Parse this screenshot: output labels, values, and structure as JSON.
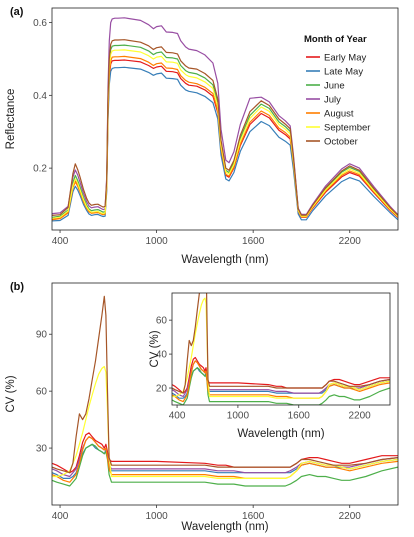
{
  "chart_data": [
    {
      "type": "line",
      "panel_label": "(a)",
      "xlabel": "Wavelength (nm)",
      "ylabel": "Reflectance",
      "xlim": [
        350,
        2500
      ],
      "ylim": [
        0.03,
        0.64
      ],
      "xticks": [
        400,
        1000,
        1600,
        2200
      ],
      "yticks": [
        0.2,
        0.4,
        0.6
      ],
      "ytick_labels": [
        "0.2",
        "0.4",
        "0.6"
      ],
      "grid": false,
      "legend": {
        "title": "Month of Year",
        "position": "top-right"
      },
      "x": [
        350,
        400,
        450,
        480,
        495,
        510,
        525,
        545,
        565,
        580,
        595,
        615,
        635,
        655,
        668,
        680,
        690,
        698,
        706,
        715,
        724,
        740,
        760,
        800,
        900,
        950,
        980,
        1000,
        1030,
        1060,
        1100,
        1130,
        1150,
        1180,
        1200,
        1250,
        1300,
        1350,
        1380,
        1400,
        1430,
        1450,
        1480,
        1520,
        1580,
        1650,
        1700,
        1760,
        1800,
        1830,
        1850,
        1880,
        1900,
        1930,
        1970,
        2050,
        2150,
        2200,
        2260,
        2350,
        2450,
        2500
      ],
      "series": [
        {
          "name": "Early May",
          "color": "#e41a1c",
          "values": [
            0.06,
            0.064,
            0.08,
            0.15,
            0.167,
            0.155,
            0.137,
            0.112,
            0.093,
            0.082,
            0.078,
            0.079,
            0.08,
            0.076,
            0.074,
            0.076,
            0.15,
            0.35,
            0.45,
            0.486,
            0.495,
            0.496,
            0.496,
            0.497,
            0.492,
            0.482,
            0.474,
            0.478,
            0.48,
            0.466,
            0.465,
            0.462,
            0.446,
            0.433,
            0.428,
            0.425,
            0.415,
            0.398,
            0.352,
            0.25,
            0.18,
            0.175,
            0.2,
            0.262,
            0.32,
            0.35,
            0.338,
            0.304,
            0.292,
            0.28,
            0.21,
            0.08,
            0.065,
            0.065,
            0.09,
            0.134,
            0.176,
            0.188,
            0.178,
            0.132,
            0.084,
            0.064
          ]
        },
        {
          "name": "Late May",
          "color": "#377eb8",
          "values": [
            0.055,
            0.056,
            0.07,
            0.135,
            0.15,
            0.14,
            0.124,
            0.101,
            0.084,
            0.074,
            0.07,
            0.072,
            0.073,
            0.069,
            0.067,
            0.068,
            0.135,
            0.33,
            0.43,
            0.466,
            0.474,
            0.476,
            0.476,
            0.477,
            0.472,
            0.463,
            0.455,
            0.459,
            0.461,
            0.447,
            0.446,
            0.444,
            0.428,
            0.415,
            0.411,
            0.407,
            0.397,
            0.38,
            0.335,
            0.236,
            0.17,
            0.165,
            0.188,
            0.246,
            0.3,
            0.328,
            0.317,
            0.285,
            0.274,
            0.263,
            0.197,
            0.074,
            0.058,
            0.058,
            0.083,
            0.124,
            0.163,
            0.174,
            0.165,
            0.122,
            0.078,
            0.058
          ]
        },
        {
          "name": "June",
          "color": "#4daf4a",
          "values": [
            0.065,
            0.068,
            0.085,
            0.16,
            0.18,
            0.166,
            0.147,
            0.12,
            0.099,
            0.088,
            0.083,
            0.085,
            0.086,
            0.082,
            0.079,
            0.081,
            0.158,
            0.375,
            0.487,
            0.526,
            0.535,
            0.537,
            0.537,
            0.538,
            0.532,
            0.522,
            0.512,
            0.517,
            0.519,
            0.504,
            0.503,
            0.5,
            0.482,
            0.468,
            0.463,
            0.459,
            0.448,
            0.429,
            0.38,
            0.27,
            0.194,
            0.188,
            0.215,
            0.282,
            0.345,
            0.376,
            0.364,
            0.327,
            0.314,
            0.301,
            0.226,
            0.086,
            0.069,
            0.069,
            0.096,
            0.144,
            0.189,
            0.202,
            0.191,
            0.142,
            0.09,
            0.068
          ]
        },
        {
          "name": "July",
          "color": "#984ea3",
          "values": [
            0.075,
            0.077,
            0.095,
            0.175,
            0.195,
            0.181,
            0.16,
            0.131,
            0.108,
            0.096,
            0.091,
            0.093,
            0.094,
            0.089,
            0.086,
            0.088,
            0.175,
            0.42,
            0.55,
            0.6,
            0.61,
            0.612,
            0.612,
            0.613,
            0.606,
            0.594,
            0.583,
            0.589,
            0.591,
            0.574,
            0.573,
            0.57,
            0.55,
            0.533,
            0.527,
            0.523,
            0.511,
            0.489,
            0.433,
            0.307,
            0.222,
            0.215,
            0.245,
            0.32,
            0.392,
            0.395,
            0.382,
            0.344,
            0.33,
            0.316,
            0.237,
            0.09,
            0.073,
            0.073,
            0.101,
            0.151,
            0.198,
            0.212,
            0.2,
            0.149,
            0.095,
            0.072
          ]
        },
        {
          "name": "August",
          "color": "#ff7f00",
          "values": [
            0.058,
            0.061,
            0.077,
            0.146,
            0.162,
            0.15,
            0.133,
            0.108,
            0.09,
            0.08,
            0.076,
            0.077,
            0.078,
            0.074,
            0.072,
            0.074,
            0.146,
            0.35,
            0.458,
            0.495,
            0.505,
            0.506,
            0.506,
            0.507,
            0.501,
            0.491,
            0.482,
            0.487,
            0.489,
            0.475,
            0.474,
            0.471,
            0.454,
            0.441,
            0.436,
            0.432,
            0.422,
            0.405,
            0.358,
            0.254,
            0.183,
            0.178,
            0.203,
            0.266,
            0.326,
            0.357,
            0.345,
            0.31,
            0.298,
            0.285,
            0.214,
            0.082,
            0.066,
            0.066,
            0.092,
            0.137,
            0.18,
            0.192,
            0.182,
            0.135,
            0.086,
            0.066
          ]
        },
        {
          "name": "September",
          "color": "#ffff33",
          "values": [
            0.062,
            0.065,
            0.082,
            0.152,
            0.17,
            0.158,
            0.139,
            0.114,
            0.094,
            0.084,
            0.079,
            0.08,
            0.081,
            0.077,
            0.075,
            0.077,
            0.152,
            0.365,
            0.475,
            0.513,
            0.522,
            0.524,
            0.524,
            0.525,
            0.519,
            0.509,
            0.5,
            0.505,
            0.507,
            0.492,
            0.491,
            0.488,
            0.47,
            0.457,
            0.452,
            0.448,
            0.437,
            0.419,
            0.37,
            0.263,
            0.19,
            0.184,
            0.21,
            0.275,
            0.337,
            0.368,
            0.356,
            0.32,
            0.307,
            0.294,
            0.221,
            0.084,
            0.068,
            0.068,
            0.094,
            0.14,
            0.184,
            0.197,
            0.186,
            0.138,
            0.088,
            0.067
          ]
        },
        {
          "name": "October",
          "color": "#a65628",
          "values": [
            0.07,
            0.072,
            0.092,
            0.185,
            0.212,
            0.196,
            0.174,
            0.142,
            0.117,
            0.104,
            0.098,
            0.1,
            0.101,
            0.096,
            0.093,
            0.095,
            0.165,
            0.39,
            0.5,
            0.54,
            0.55,
            0.552,
            0.552,
            0.553,
            0.546,
            0.536,
            0.526,
            0.531,
            0.533,
            0.518,
            0.517,
            0.514,
            0.495,
            0.481,
            0.475,
            0.472,
            0.46,
            0.441,
            0.39,
            0.277,
            0.2,
            0.194,
            0.221,
            0.29,
            0.355,
            0.385,
            0.372,
            0.335,
            0.321,
            0.308,
            0.231,
            0.088,
            0.071,
            0.071,
            0.098,
            0.146,
            0.192,
            0.206,
            0.194,
            0.144,
            0.092,
            0.07
          ]
        }
      ]
    },
    {
      "type": "line",
      "panel_label": "(b)",
      "xlabel": "Wavelength (nm)",
      "ylabel": "CV (%)",
      "xlim": [
        350,
        2500
      ],
      "ylim": [
        0,
        117
      ],
      "xticks": [
        400,
        1000,
        1600,
        2200
      ],
      "yticks": [
        30,
        60,
        90
      ],
      "grid": false,
      "x": [
        350,
        380,
        420,
        460,
        480,
        500,
        520,
        540,
        560,
        580,
        600,
        620,
        640,
        660,
        675,
        685,
        695,
        705,
        720,
        750,
        800,
        1000,
        1300,
        1380,
        1430,
        1480,
        1550,
        1800,
        1830,
        1870,
        1900,
        1950,
        2000,
        2050,
        2100,
        2150,
        2200,
        2300,
        2400,
        2500
      ],
      "series": [
        {
          "name": "Early May",
          "color": "#e41a1c",
          "values": [
            22,
            21,
            19,
            17,
            18,
            20,
            26,
            33,
            37,
            38,
            36,
            34,
            33,
            32,
            30,
            32,
            28,
            24,
            23,
            23,
            23,
            23,
            22,
            21,
            21,
            20,
            20,
            20,
            20,
            22,
            24,
            25,
            25,
            24,
            23,
            22,
            22,
            24,
            26,
            26
          ]
        },
        {
          "name": "Late May",
          "color": "#377eb8",
          "values": [
            17,
            16,
            14,
            14,
            15,
            17,
            22,
            27,
            30,
            31,
            32,
            30,
            29,
            28,
            27,
            29,
            25,
            20,
            18,
            18,
            18,
            18,
            18,
            17,
            17,
            17,
            17,
            17,
            17,
            19,
            21,
            22,
            21,
            20,
            20,
            20,
            19,
            21,
            23,
            24
          ]
        },
        {
          "name": "June",
          "color": "#4daf4a",
          "values": [
            13,
            12,
            11,
            10,
            12,
            14,
            20,
            26,
            30,
            31,
            32,
            31,
            29,
            28,
            27,
            28,
            24,
            16,
            12,
            12,
            12,
            12,
            12,
            11,
            11,
            11,
            10,
            10,
            11,
            13,
            15,
            16,
            15,
            15,
            14,
            13,
            13,
            15,
            18,
            20
          ]
        },
        {
          "name": "July",
          "color": "#984ea3",
          "values": [
            19,
            18,
            16,
            15,
            17,
            19,
            24,
            30,
            34,
            36,
            35,
            33,
            31,
            30,
            29,
            30,
            26,
            21,
            19,
            19,
            19,
            19,
            19,
            18,
            18,
            18,
            17,
            17,
            18,
            20,
            22,
            23,
            22,
            21,
            21,
            20,
            20,
            22,
            24,
            25
          ]
        },
        {
          "name": "August",
          "color": "#ff7f00",
          "values": [
            16,
            15,
            13,
            12,
            14,
            16,
            22,
            29,
            34,
            36,
            35,
            33,
            31,
            30,
            29,
            30,
            25,
            19,
            16,
            16,
            16,
            16,
            16,
            15,
            15,
            15,
            14,
            14,
            15,
            18,
            21,
            22,
            21,
            20,
            20,
            19,
            18,
            20,
            22,
            23
          ]
        },
        {
          "name": "September",
          "color": "#ffff33",
          "values": [
            15,
            15,
            16,
            18,
            22,
            26,
            32,
            38,
            45,
            52,
            58,
            64,
            69,
            72,
            73,
            70,
            50,
            25,
            15,
            15,
            15,
            15,
            15,
            14,
            14,
            14,
            14,
            14,
            15,
            18,
            22,
            23,
            22,
            21,
            21,
            20,
            19,
            21,
            23,
            24
          ]
        },
        {
          "name": "October",
          "color": "#a65628",
          "values": [
            20,
            19,
            18,
            17,
            22,
            36,
            48,
            45,
            48,
            56,
            66,
            76,
            88,
            100,
            110,
            100,
            60,
            25,
            21,
            21,
            21,
            21,
            21,
            20,
            20,
            20,
            20,
            20,
            20,
            22,
            24,
            24,
            23,
            22,
            21,
            21,
            21,
            22,
            24,
            25
          ]
        }
      ]
    },
    {
      "type": "line",
      "panel_label": "(b) inset",
      "xlabel": "Wavelength (nm)",
      "ylabel": "CV (%)",
      "xlim": [
        350,
        2500
      ],
      "ylim": [
        10,
        76
      ],
      "xticks": [
        400,
        1000,
        1600,
        2200
      ],
      "yticks": [
        20,
        40,
        60
      ],
      "grid": false,
      "series_from": "(b)"
    }
  ]
}
